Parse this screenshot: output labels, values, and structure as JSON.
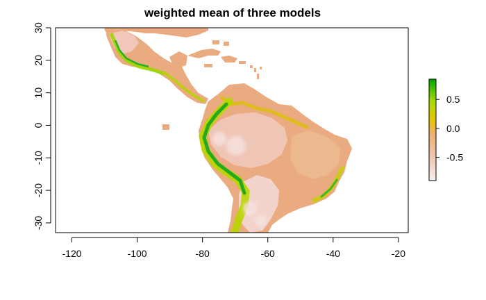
{
  "title": "weighted mean of three models",
  "map": {
    "x_axis": {
      "ticks": [
        -120,
        -100,
        -80,
        -60,
        -40,
        -20
      ],
      "labels": [
        "-120",
        "-100",
        "-80",
        "-60",
        "-40",
        "-20"
      ],
      "range": [
        -125,
        -17
      ]
    },
    "y_axis": {
      "ticks": [
        -30,
        -20,
        -10,
        0,
        10,
        20,
        30
      ],
      "labels": [
        "-30",
        "-20",
        "-10",
        "0",
        "10",
        "20",
        "30"
      ],
      "range": [
        -33,
        30
      ]
    }
  },
  "legend": {
    "labels": [
      "0.5",
      "0.0",
      "-0.5"
    ],
    "values": [
      0.5,
      0.0,
      -0.5
    ],
    "range": [
      -0.9,
      0.85
    ],
    "colors": [
      "#f2f2f2",
      "#ecb176",
      "#e6c600",
      "#a6de00",
      "#00a600"
    ]
  },
  "colors": {
    "land_base": "#e8a77a",
    "land_light": "#efc2b4",
    "land_pale": "#f6dede",
    "ochre": "#e2b24e",
    "yellow": "#d8c900",
    "yellow_green": "#a8d800",
    "green": "#2db52d",
    "dark_green": "#10a010"
  }
}
